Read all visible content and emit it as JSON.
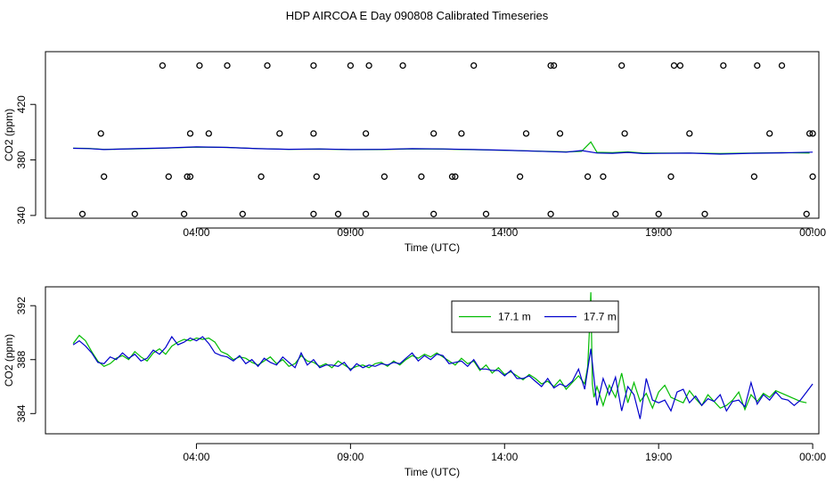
{
  "page": {
    "title": "HDP AIRCOA E  Day 090808  Calibrated Timeseries"
  },
  "chart_data": [
    {
      "type": "scatter",
      "xlabel": "Time (UTC)",
      "ylabel": "CO2 (ppm)",
      "x_unit": "hours UTC",
      "xlim": [
        -0.9,
        24.2
      ],
      "ylim": [
        338,
        458
      ],
      "x_ticks": [
        4,
        9,
        14,
        19,
        24
      ],
      "x_tick_labels": [
        "04:00",
        "09:00",
        "14:00",
        "19:00",
        "00:00"
      ],
      "y_ticks": [
        340,
        380,
        420
      ],
      "y_tick_labels": [
        "340",
        "380",
        "420"
      ],
      "series": [
        {
          "color": "#00bb00",
          "x": [
            0.0,
            0.5,
            1.0,
            2.0,
            3.0,
            4.0,
            5.0,
            6.0,
            7.0,
            8.0,
            9.0,
            10.0,
            11.0,
            12.0,
            13.0,
            14.0,
            15.0,
            16.0,
            16.5,
            16.8,
            17.0,
            17.5,
            18.0,
            18.5,
            19.0,
            20.0,
            21.0,
            22.0,
            23.0,
            23.9
          ],
          "y": [
            388.5,
            388.3,
            387.6,
            388.0,
            388.5,
            389.3,
            389.0,
            388.2,
            387.6,
            387.8,
            387.4,
            387.5,
            388.0,
            387.8,
            387.4,
            386.9,
            386.4,
            385.8,
            386.2,
            393.0,
            385.5,
            385.2,
            385.8,
            385.0,
            384.9,
            385.0,
            384.6,
            385.0,
            385.2,
            385.0
          ]
        },
        {
          "color": "#0000cc",
          "x": [
            0.0,
            0.5,
            1.0,
            2.0,
            3.0,
            4.0,
            5.0,
            6.0,
            7.0,
            8.0,
            9.0,
            10.0,
            11.0,
            12.0,
            13.0,
            14.0,
            15.0,
            16.0,
            16.5,
            17.0,
            17.5,
            18.0,
            18.5,
            19.0,
            20.0,
            21.0,
            22.0,
            23.0,
            24.0
          ],
          "y": [
            388.4,
            388.2,
            387.5,
            388.1,
            388.6,
            389.4,
            389.0,
            388.1,
            387.7,
            387.9,
            387.5,
            387.6,
            388.1,
            387.9,
            387.5,
            387.0,
            386.3,
            385.6,
            386.8,
            385.0,
            384.8,
            385.4,
            384.6,
            384.7,
            384.9,
            384.2,
            384.8,
            385.1,
            385.6
          ]
        }
      ],
      "calibration_points": {
        "x": [
          0.3,
          2.0,
          3.6,
          5.5,
          7.8,
          9.5,
          11.7,
          13.4,
          15.5,
          17.6,
          19.0,
          20.5,
          23.8,
          1.0,
          3.1,
          3.7,
          6.1,
          7.9,
          10.1,
          12.3,
          14.5,
          16.7,
          19.4,
          22.1,
          24.0,
          0.9,
          3.8,
          4.4,
          6.7,
          7.8,
          9.5,
          11.7,
          12.6,
          14.7,
          15.8,
          17.9,
          20.0,
          22.6,
          23.9,
          2.9,
          4.1,
          6.3,
          9.0,
          10.7,
          13.0,
          15.5,
          17.8,
          19.7,
          21.1,
          23.0,
          3.8,
          5.0,
          7.8,
          8.6,
          9.6,
          11.3,
          12.4,
          15.6,
          17.2,
          19.5,
          22.2,
          24.0
        ],
        "y": [
          341,
          341,
          341,
          341,
          341,
          341,
          341,
          341,
          341,
          341,
          341,
          341,
          341,
          368,
          368,
          368,
          368,
          368,
          368,
          368,
          368,
          368,
          368,
          368,
          368,
          399,
          399,
          399,
          399,
          399,
          399,
          399,
          399,
          399,
          399,
          399,
          399,
          399,
          399,
          448,
          448,
          448,
          448,
          448,
          448,
          448,
          448,
          448,
          448,
          448,
          368,
          448,
          448,
          341,
          448,
          368,
          368,
          448,
          368,
          448,
          448,
          399
        ]
      }
    },
    {
      "type": "line",
      "xlabel": "Time (UTC)",
      "ylabel": "CO2 (ppm)",
      "x_unit": "hours UTC",
      "xlim": [
        -0.9,
        24.2
      ],
      "ylim": [
        382.5,
        393.4
      ],
      "x_ticks": [
        4,
        9,
        14,
        19,
        24
      ],
      "x_tick_labels": [
        "04:00",
        "09:00",
        "14:00",
        "19:00",
        "00:00"
      ],
      "y_ticks": [
        384,
        388,
        392
      ],
      "y_tick_labels": [
        "384",
        "388",
        "392"
      ],
      "legend_position": "top-center",
      "series": [
        {
          "name": "17.1 m",
          "color": "#00bb00",
          "x": [
            0.0,
            0.2,
            0.4,
            0.6,
            0.8,
            1.0,
            1.2,
            1.4,
            1.6,
            1.8,
            2.0,
            2.2,
            2.4,
            2.6,
            2.8,
            3.0,
            3.2,
            3.4,
            3.6,
            3.8,
            4.0,
            4.2,
            4.4,
            4.6,
            4.8,
            5.0,
            5.2,
            5.4,
            5.6,
            5.8,
            6.0,
            6.2,
            6.4,
            6.6,
            6.8,
            7.0,
            7.2,
            7.4,
            7.6,
            7.8,
            8.0,
            8.2,
            8.4,
            8.6,
            8.8,
            9.0,
            9.2,
            9.4,
            9.6,
            9.8,
            10.0,
            10.2,
            10.4,
            10.6,
            10.8,
            11.0,
            11.2,
            11.4,
            11.6,
            11.8,
            12.0,
            12.2,
            12.4,
            12.6,
            12.8,
            13.0,
            13.2,
            13.4,
            13.6,
            13.8,
            14.0,
            14.2,
            14.4,
            14.6,
            14.8,
            15.0,
            15.2,
            15.4,
            15.6,
            15.8,
            16.0,
            16.2,
            16.4,
            16.6,
            16.7,
            16.75,
            16.8,
            16.85,
            16.9,
            17.0,
            17.2,
            17.4,
            17.6,
            17.8,
            18.0,
            18.2,
            18.4,
            18.6,
            18.8,
            19.0,
            19.2,
            19.4,
            19.6,
            19.8,
            20.0,
            20.2,
            20.4,
            20.6,
            20.8,
            21.0,
            21.2,
            21.4,
            21.6,
            21.8,
            22.0,
            22.2,
            22.4,
            22.6,
            22.8,
            23.0,
            23.2,
            23.4,
            23.6,
            23.8
          ],
          "y": [
            389.2,
            389.8,
            389.4,
            388.6,
            387.9,
            387.5,
            387.7,
            388.1,
            388.3,
            388.0,
            388.6,
            388.2,
            387.9,
            388.5,
            388.8,
            388.4,
            389.0,
            389.3,
            389.5,
            389.4,
            389.6,
            389.5,
            389.6,
            389.3,
            388.6,
            388.4,
            388.0,
            388.2,
            388.1,
            387.8,
            387.6,
            387.9,
            388.2,
            387.7,
            388.0,
            387.5,
            387.7,
            388.3,
            387.9,
            387.8,
            387.5,
            387.7,
            387.4,
            387.9,
            387.6,
            387.3,
            387.5,
            387.6,
            387.4,
            387.7,
            387.8,
            387.5,
            387.9,
            387.6,
            388.0,
            388.3,
            388.1,
            388.4,
            388.2,
            388.5,
            388.2,
            387.9,
            387.6,
            388.1,
            387.7,
            387.9,
            387.2,
            387.6,
            387.0,
            387.4,
            386.9,
            387.1,
            386.8,
            386.5,
            386.9,
            386.6,
            386.2,
            386.4,
            386.0,
            386.5,
            385.8,
            386.3,
            386.8,
            386.2,
            387.5,
            390.0,
            393.0,
            386.2,
            385.2,
            386.0,
            384.6,
            386.1,
            385.2,
            387.0,
            384.8,
            386.3,
            384.9,
            385.5,
            384.4,
            385.6,
            386.1,
            385.2,
            385.0,
            384.8,
            385.7,
            385.1,
            384.6,
            385.4,
            384.9,
            384.4,
            384.6,
            385.0,
            385.6,
            384.3,
            385.4,
            384.9,
            385.5,
            385.2,
            385.7,
            385.5,
            385.3,
            385.1,
            384.9,
            384.8
          ]
        },
        {
          "name": "17.7 m",
          "color": "#0000cc",
          "x": [
            0.0,
            0.2,
            0.4,
            0.6,
            0.8,
            1.0,
            1.2,
            1.4,
            1.6,
            1.8,
            2.0,
            2.2,
            2.4,
            2.6,
            2.8,
            3.0,
            3.2,
            3.4,
            3.6,
            3.8,
            4.0,
            4.2,
            4.4,
            4.6,
            4.8,
            5.0,
            5.2,
            5.4,
            5.6,
            5.8,
            6.0,
            6.2,
            6.4,
            6.6,
            6.8,
            7.0,
            7.2,
            7.4,
            7.6,
            7.8,
            8.0,
            8.2,
            8.4,
            8.6,
            8.8,
            9.0,
            9.2,
            9.4,
            9.6,
            9.8,
            10.0,
            10.2,
            10.4,
            10.6,
            10.8,
            11.0,
            11.2,
            11.4,
            11.6,
            11.8,
            12.0,
            12.2,
            12.4,
            12.6,
            12.8,
            13.0,
            13.2,
            13.4,
            13.6,
            13.8,
            14.0,
            14.2,
            14.4,
            14.6,
            14.8,
            15.0,
            15.2,
            15.4,
            15.6,
            15.8,
            16.0,
            16.2,
            16.4,
            16.6,
            16.8,
            17.0,
            17.2,
            17.4,
            17.6,
            17.8,
            18.0,
            18.2,
            18.4,
            18.6,
            18.8,
            19.0,
            19.2,
            19.4,
            19.6,
            19.8,
            20.0,
            20.2,
            20.4,
            20.6,
            20.8,
            21.0,
            21.2,
            21.4,
            21.6,
            21.8,
            22.0,
            22.2,
            22.4,
            22.6,
            22.8,
            23.0,
            23.2,
            23.4,
            23.6,
            23.8,
            24.0
          ],
          "y": [
            389.1,
            389.4,
            389.0,
            388.5,
            387.8,
            387.7,
            388.2,
            388.0,
            388.5,
            388.1,
            388.4,
            387.9,
            388.1,
            388.7,
            388.4,
            388.9,
            389.7,
            389.1,
            389.3,
            389.6,
            389.4,
            389.7,
            389.2,
            388.5,
            388.3,
            388.2,
            387.9,
            388.3,
            387.7,
            388.0,
            387.5,
            388.1,
            387.8,
            387.6,
            388.2,
            387.8,
            387.4,
            388.5,
            387.6,
            388.0,
            387.4,
            387.6,
            387.6,
            387.5,
            387.8,
            387.2,
            387.7,
            387.4,
            387.6,
            387.5,
            387.7,
            387.6,
            387.8,
            387.7,
            388.1,
            388.5,
            387.9,
            388.3,
            388.0,
            388.4,
            388.3,
            387.7,
            387.8,
            387.9,
            387.5,
            388.0,
            387.3,
            387.3,
            387.2,
            387.2,
            386.8,
            387.2,
            386.6,
            386.6,
            386.8,
            386.4,
            386.0,
            386.6,
            385.9,
            386.2,
            386.0,
            386.4,
            387.3,
            385.8,
            388.8,
            384.6,
            386.6,
            385.4,
            386.7,
            384.2,
            386.0,
            385.4,
            383.6,
            386.6,
            385.0,
            384.8,
            385.0,
            384.2,
            385.6,
            385.8,
            384.8,
            385.3,
            384.6,
            385.1,
            384.9,
            385.4,
            384.2,
            384.9,
            385.0,
            384.5,
            386.3,
            384.7,
            385.4,
            385.0,
            385.6,
            385.1,
            385.0,
            384.6,
            385.0,
            385.6,
            386.2
          ]
        }
      ]
    }
  ]
}
